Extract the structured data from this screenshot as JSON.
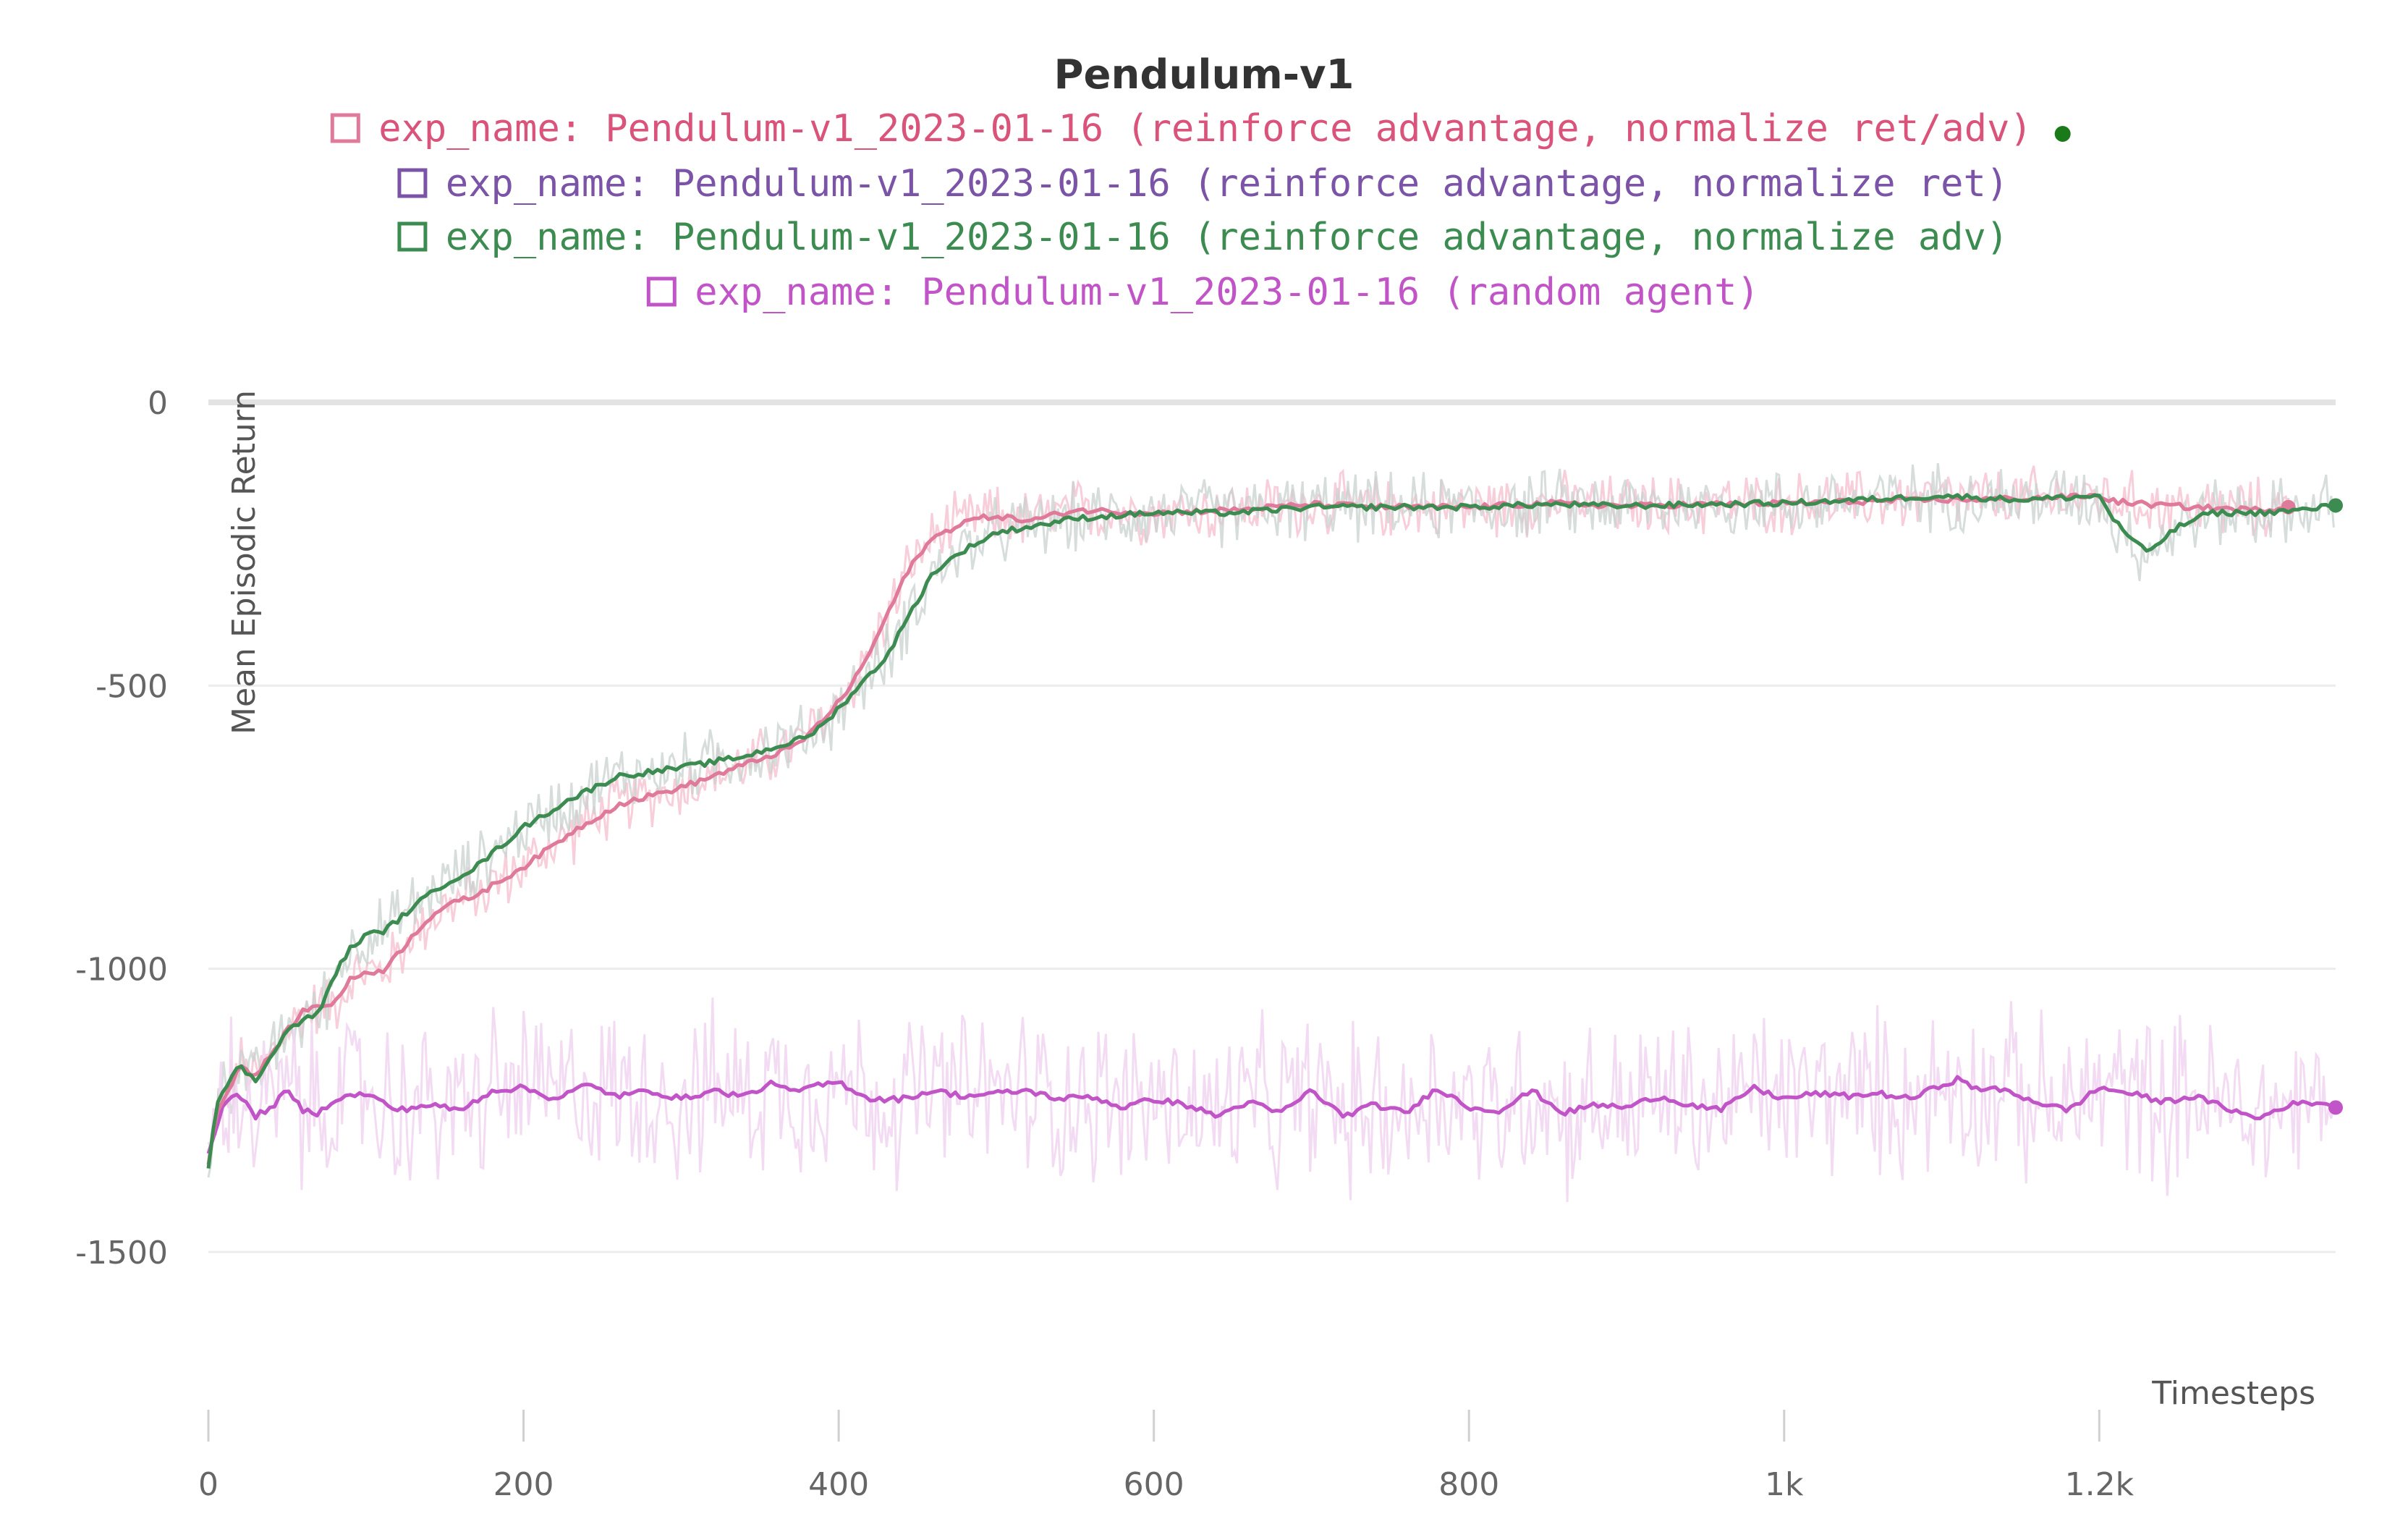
{
  "chart_data": {
    "type": "line",
    "title": "Pendulum-v1",
    "xlabel": "Timesteps",
    "ylabel": "Mean Episodic Return",
    "xlim": [
      0,
      1350
    ],
    "ylim": [
      -1750,
      0
    ],
    "x_ticks": [
      0,
      200,
      400,
      600,
      800,
      1000,
      1200
    ],
    "x_tick_labels": [
      "0",
      "200",
      "400",
      "600",
      "800",
      "1k",
      "1.2k"
    ],
    "y_ticks": [
      0,
      -500,
      -1000,
      -1500
    ],
    "y_tick_labels": [
      "0",
      "-500",
      "-1000",
      "-1500"
    ],
    "grid": true,
    "legend_position": "top-center",
    "series": [
      {
        "name": "exp_name: Pendulum-v1_2023-01-16 (reinforce advantage, normalize ret/adv)",
        "color": "#d9537a",
        "line_color": "#e07a9a",
        "highlighted": true,
        "x": [
          0,
          5,
          10,
          20,
          30,
          40,
          50,
          60,
          70,
          80,
          90,
          100,
          110,
          120,
          130,
          140,
          150,
          170,
          200,
          230,
          260,
          300,
          340,
          370,
          380,
          390,
          400,
          410,
          420,
          430,
          440,
          450,
          460,
          480,
          500,
          520,
          550,
          600,
          650,
          700,
          750,
          800,
          850,
          900,
          950,
          1000,
          1050,
          1100,
          1150,
          1200,
          1210,
          1230,
          1260,
          1300,
          1320
        ],
        "values": [
          -1350,
          -1250,
          -1230,
          -1170,
          -1190,
          -1150,
          -1110,
          -1075,
          -1065,
          -1060,
          -1020,
          -1005,
          -1005,
          -975,
          -940,
          -910,
          -890,
          -870,
          -820,
          -760,
          -710,
          -680,
          -640,
          -610,
          -590,
          -560,
          -530,
          -490,
          -440,
          -380,
          -320,
          -270,
          -240,
          -210,
          -200,
          -210,
          -190,
          -195,
          -190,
          -180,
          -185,
          -185,
          -178,
          -183,
          -180,
          -178,
          -175,
          -172,
          -170,
          -165,
          -175,
          -180,
          -185,
          -190,
          -185
        ]
      },
      {
        "name": "exp_name: Pendulum-v1_2023-01-16 (reinforce advantage, normalize ret)",
        "color": "#7b54a8",
        "line_color": "#7b54a8",
        "highlighted": false,
        "x": [],
        "values": []
      },
      {
        "name": "exp_name: Pendulum-v1_2023-01-16 (reinforce advantage, normalize adv)",
        "color": "#3c8b50",
        "line_color": "#3c8b50",
        "highlighted": false,
        "x": [
          0,
          5,
          10,
          20,
          30,
          40,
          50,
          60,
          70,
          80,
          90,
          100,
          110,
          120,
          130,
          140,
          150,
          170,
          200,
          230,
          260,
          300,
          340,
          370,
          380,
          390,
          400,
          410,
          420,
          430,
          440,
          450,
          460,
          480,
          500,
          520,
          550,
          600,
          650,
          700,
          750,
          800,
          850,
          900,
          950,
          1000,
          1050,
          1100,
          1150,
          1200,
          1210,
          1220,
          1230,
          1250,
          1270,
          1300,
          1330,
          1350
        ],
        "values": [
          -1350,
          -1235,
          -1215,
          -1170,
          -1200,
          -1150,
          -1110,
          -1090,
          -1080,
          -1010,
          -965,
          -940,
          -935,
          -915,
          -890,
          -870,
          -850,
          -820,
          -750,
          -700,
          -660,
          -645,
          -625,
          -600,
          -590,
          -570,
          -540,
          -510,
          -480,
          -450,
          -400,
          -350,
          -300,
          -260,
          -230,
          -220,
          -205,
          -195,
          -195,
          -185,
          -185,
          -185,
          -180,
          -183,
          -180,
          -178,
          -172,
          -165,
          -172,
          -165,
          -210,
          -240,
          -265,
          -220,
          -195,
          -195,
          -190,
          -182
        ]
      },
      {
        "name": "exp_name: Pendulum-v1_2023-01-16 (random agent)",
        "color": "#c155c8",
        "line_color": "#c155c8",
        "highlighted": false,
        "x": [
          0,
          10,
          20,
          30,
          40,
          50,
          60,
          70,
          80,
          100,
          120,
          140,
          160,
          180,
          200,
          220,
          240,
          260,
          280,
          300,
          320,
          340,
          360,
          370,
          380,
          400,
          420,
          440,
          460,
          480,
          500,
          520,
          540,
          560,
          580,
          600,
          620,
          640,
          660,
          680,
          700,
          720,
          740,
          760,
          780,
          800,
          820,
          840,
          860,
          880,
          900,
          920,
          940,
          960,
          980,
          1000,
          1020,
          1040,
          1060,
          1080,
          1100,
          1110,
          1120,
          1140,
          1160,
          1180,
          1200,
          1220,
          1240,
          1260,
          1280,
          1300,
          1320,
          1340,
          1350
        ],
        "values": [
          -1330,
          -1230,
          -1225,
          -1260,
          -1245,
          -1215,
          -1250,
          -1255,
          -1230,
          -1220,
          -1250,
          -1240,
          -1250,
          -1215,
          -1210,
          -1230,
          -1205,
          -1225,
          -1215,
          -1230,
          -1215,
          -1225,
          -1200,
          -1220,
          -1210,
          -1200,
          -1230,
          -1230,
          -1215,
          -1225,
          -1220,
          -1215,
          -1230,
          -1225,
          -1245,
          -1230,
          -1240,
          -1260,
          -1235,
          -1255,
          -1215,
          -1260,
          -1240,
          -1255,
          -1210,
          -1245,
          -1250,
          -1215,
          -1255,
          -1240,
          -1245,
          -1225,
          -1240,
          -1250,
          -1210,
          -1230,
          -1220,
          -1225,
          -1220,
          -1230,
          -1205,
          -1195,
          -1210,
          -1215,
          -1235,
          -1250,
          -1210,
          -1220,
          -1235,
          -1225,
          -1245,
          -1265,
          -1240,
          -1235,
          -1245
        ]
      }
    ]
  }
}
